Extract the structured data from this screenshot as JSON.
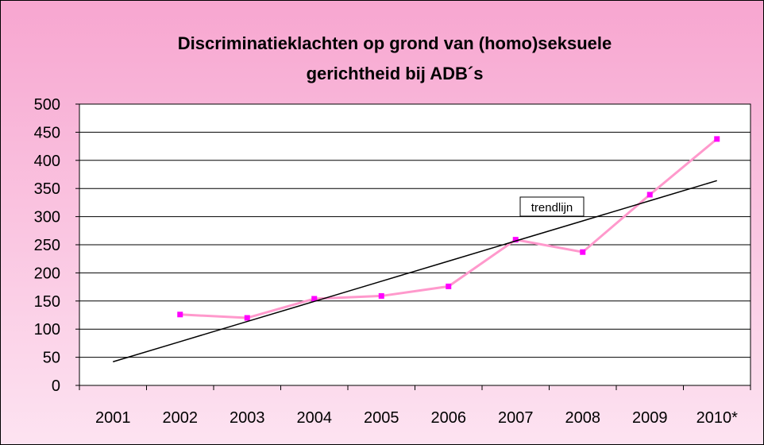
{
  "chart_data": {
    "type": "line",
    "title": [
      "Discriminatieklachten op grond van (homo)seksuele",
      "gerichtheid bij ADB´s"
    ],
    "categories": [
      "2001",
      "2002",
      "2003",
      "2004",
      "2005",
      "2006",
      "2007",
      "2008",
      "2009",
      "2010*"
    ],
    "series": [
      {
        "name": "",
        "color": "#ff99cc",
        "marker_color": "#ff00ff",
        "values": [
          null,
          126,
          120,
          154,
          159,
          176,
          259,
          237,
          339,
          438
        ]
      },
      {
        "name": "trendlijn",
        "color": "#000000",
        "values": [
          42,
          77.8,
          113.6,
          149.3,
          185.1,
          220.9,
          256.7,
          292.4,
          328.2,
          364
        ]
      }
    ],
    "ylim": [
      0,
      500
    ],
    "yticks": [
      0,
      50,
      100,
      150,
      200,
      250,
      300,
      350,
      400,
      450,
      500
    ],
    "grid": true
  }
}
